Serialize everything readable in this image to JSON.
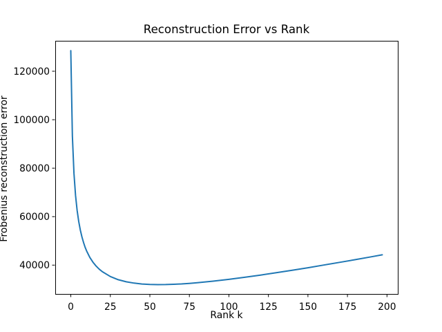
{
  "figure": {
    "background": "#ffffff",
    "text_color": "#000000",
    "spine_color": "#000000"
  },
  "chart_data": {
    "type": "line",
    "title": "Reconstruction Error vs Rank",
    "xlabel": "Rank k",
    "ylabel": "Frobenius reconstruction error",
    "line_color": "#1f77b4",
    "grid": false,
    "legend": false,
    "xlim": [
      -9.85,
      206.85
    ],
    "ylim": [
      28100,
      132560
    ],
    "xticks": [
      0,
      25,
      50,
      75,
      100,
      125,
      150,
      175,
      200
    ],
    "yticks": [
      40000,
      60000,
      80000,
      100000,
      120000
    ],
    "x": [
      0,
      1,
      2,
      3,
      4,
      5,
      6,
      7,
      8,
      9,
      10,
      12,
      14,
      16,
      18,
      20,
      25,
      30,
      35,
      40,
      45,
      50,
      55,
      60,
      65,
      70,
      75,
      80,
      90,
      100,
      110,
      120,
      130,
      140,
      150,
      160,
      170,
      180,
      190,
      197
    ],
    "y": [
      128500,
      93320,
      77860,
      68710,
      62510,
      57970,
      54470,
      51670,
      49380,
      47470,
      45840,
      43210,
      41190,
      39600,
      38310,
      37260,
      35280,
      33980,
      33130,
      32570,
      32220,
      32030,
      31960,
      31980,
      32090,
      32250,
      32470,
      32740,
      33380,
      34130,
      34980,
      35890,
      36860,
      37880,
      38930,
      40020,
      41140,
      42270,
      43430,
      44260
    ]
  }
}
